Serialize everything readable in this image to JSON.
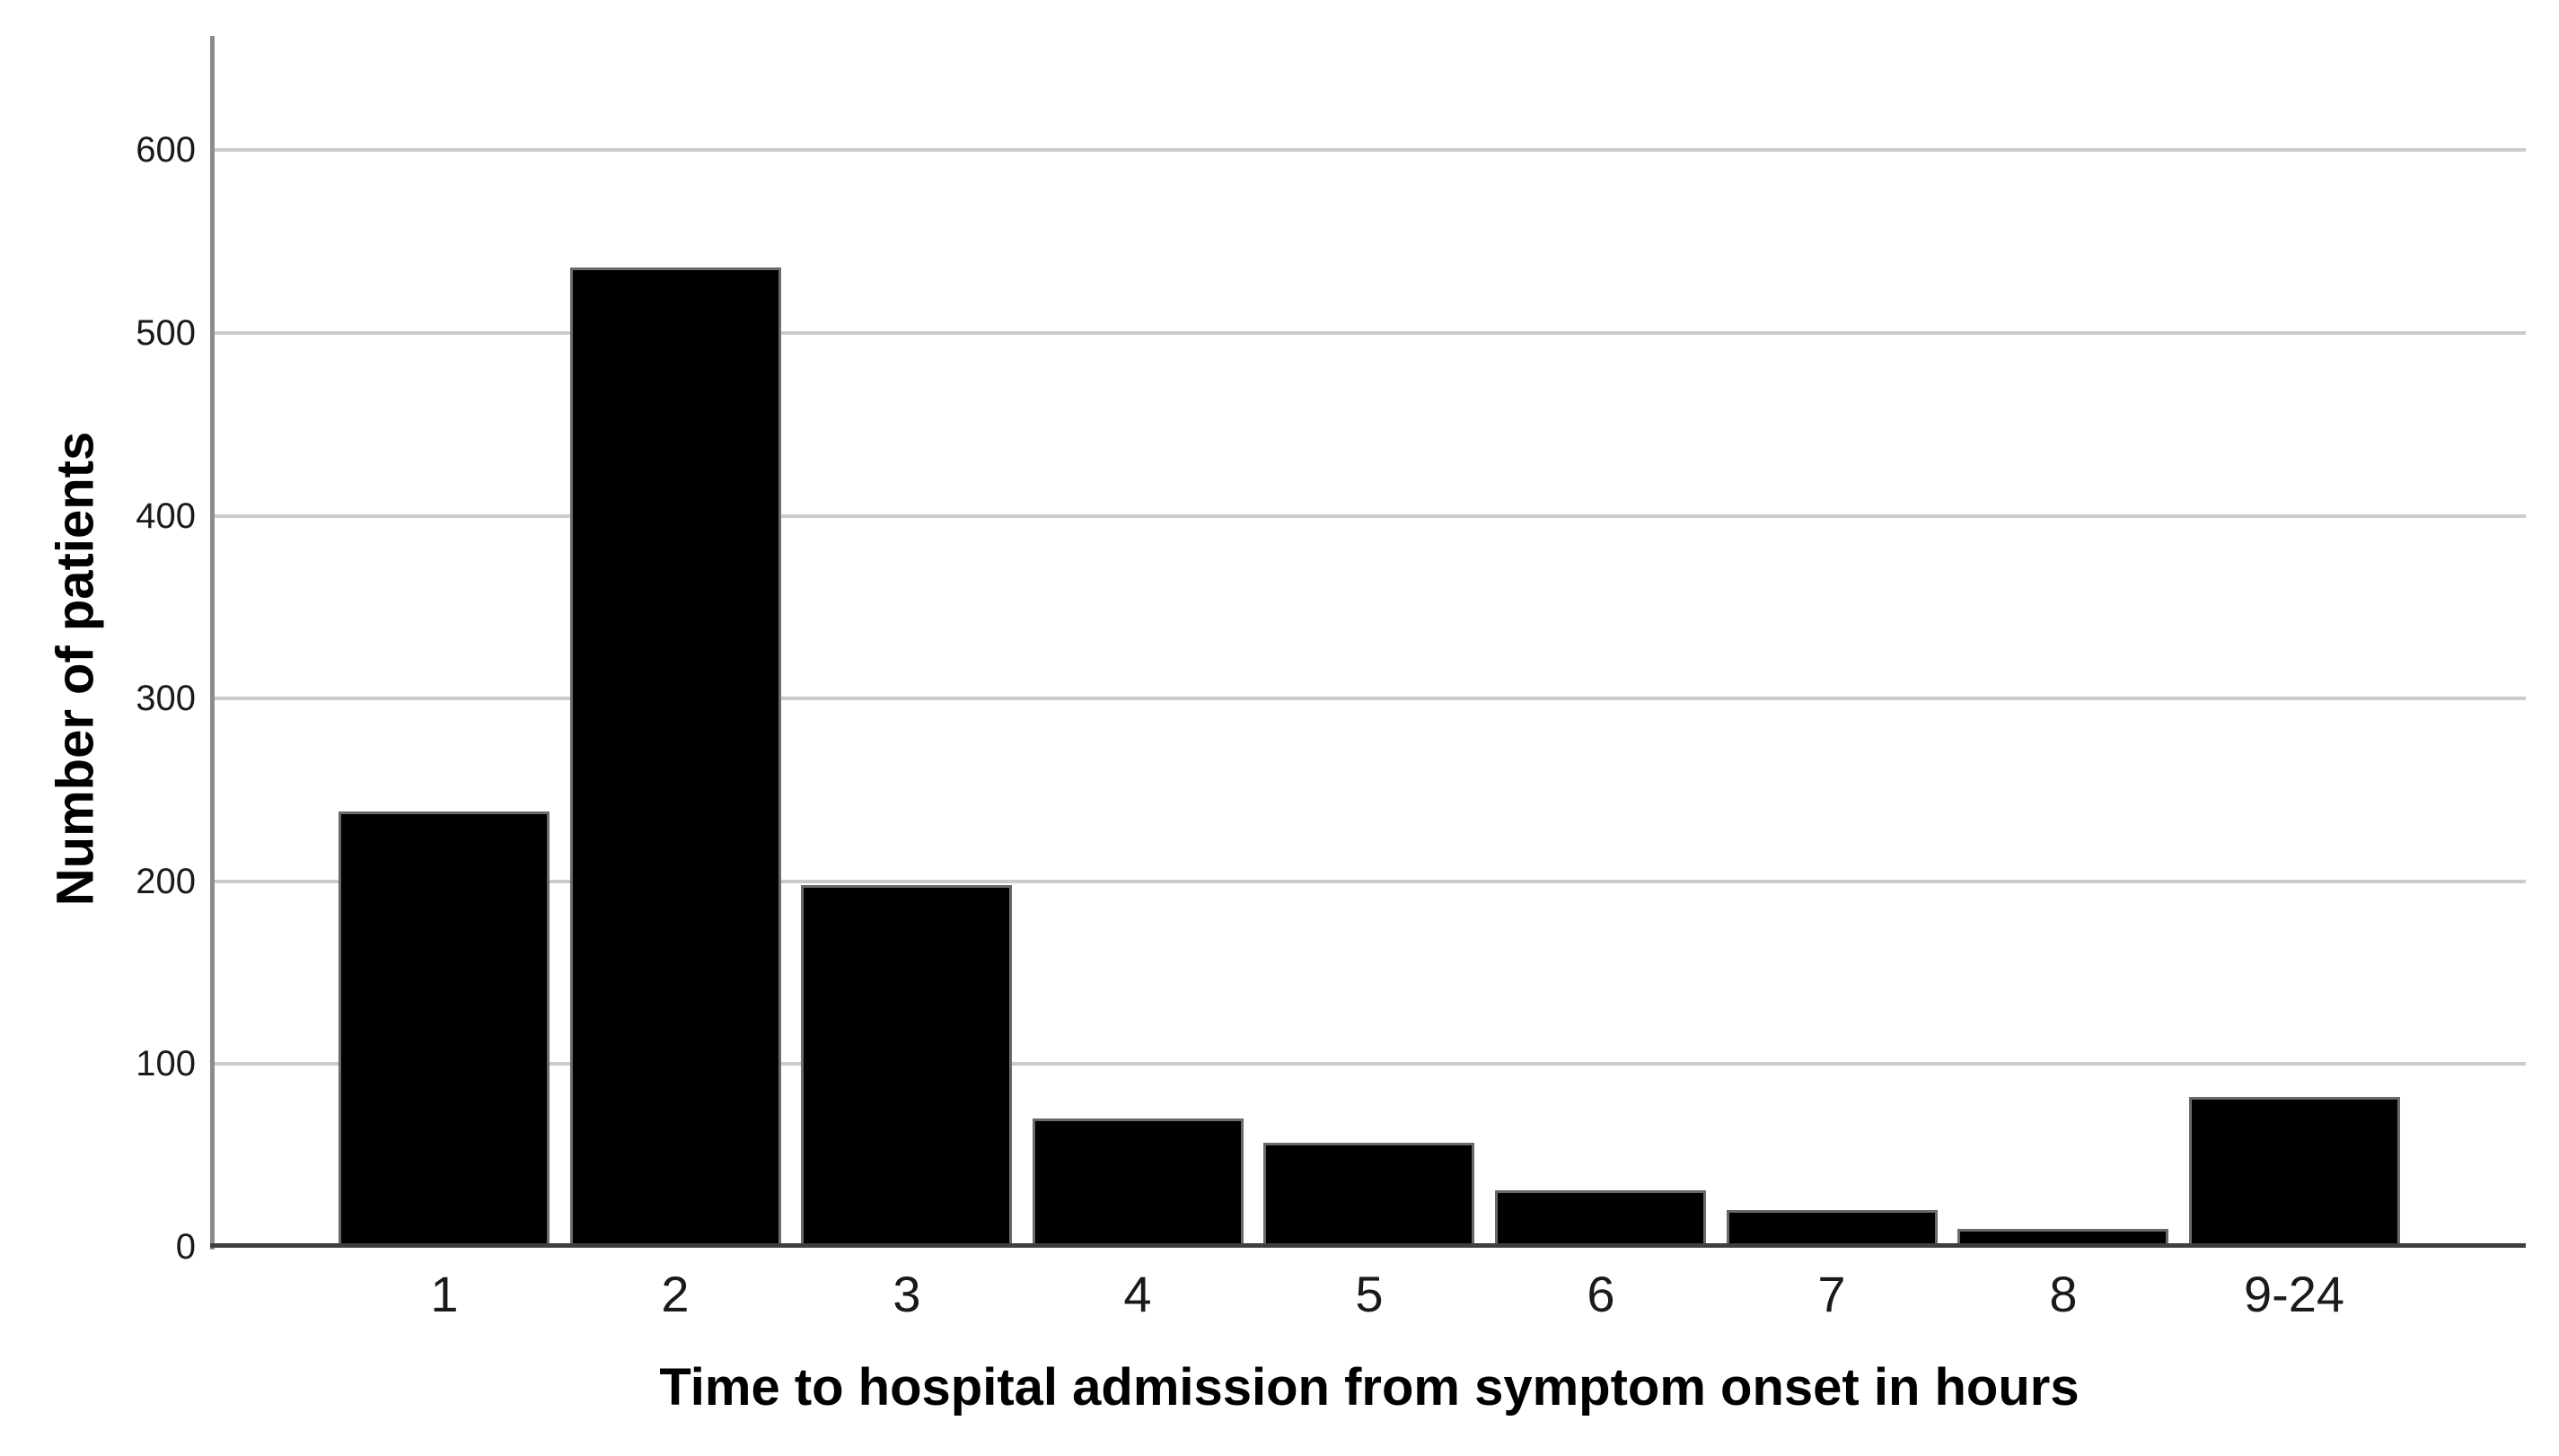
{
  "chart_data": {
    "type": "bar",
    "categories": [
      "1",
      "2",
      "3",
      "4",
      "5",
      "6",
      "7",
      "8",
      "9-24"
    ],
    "values": [
      238,
      536,
      198,
      70,
      57,
      31,
      20,
      10,
      82
    ],
    "title": "",
    "xlabel": "Time to hospital admission from symptom onset in hours",
    "ylabel": "Number of patients",
    "yticks": [
      0,
      100,
      200,
      300,
      400,
      500,
      600
    ],
    "ylim": [
      0,
      660
    ],
    "grid": "horizontal",
    "legend_position": "none",
    "bar_color": "#000000",
    "bar_border_color": "#6a6a6a",
    "gridline_color": "#cbcbcb",
    "y_axis_color": "#8c8c8c",
    "x_axis_color": "#3f3f3f",
    "background_color": "#ffffff"
  }
}
